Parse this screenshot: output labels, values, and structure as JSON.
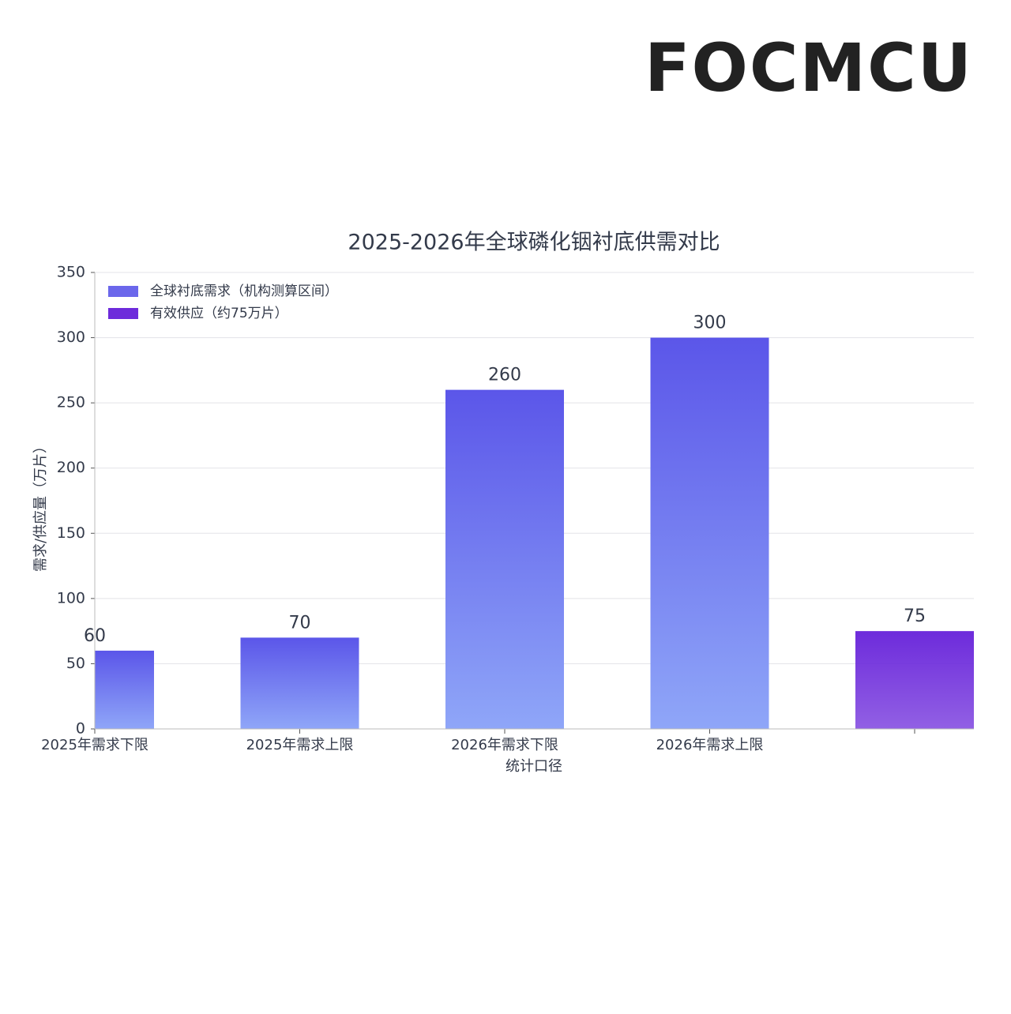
{
  "logo": "FOCMCU",
  "chart_data": {
    "type": "bar",
    "title": "2025-2026年全球磷化铟衬底供需对比",
    "xlabel": "统计口径",
    "ylabel": "需求/供应量（万片）",
    "categories": [
      "2025年需求下限",
      "2025年需求上限",
      "2026年需求下限",
      "2026年需求上限",
      null
    ],
    "series": [
      {
        "name": "全球衬底需求（机构测算区间）",
        "color": "#5b56e9",
        "values": [
          60,
          70,
          260,
          300,
          null
        ]
      },
      {
        "name": "有效供应（约75万片）",
        "color": "#6d2bdb",
        "values": [
          null,
          null,
          null,
          null,
          75
        ]
      }
    ],
    "ylim": [
      0,
      350
    ],
    "yticks": [
      0,
      50,
      100,
      150,
      200,
      250,
      300,
      350
    ],
    "grid": true,
    "legend": "upper left"
  }
}
